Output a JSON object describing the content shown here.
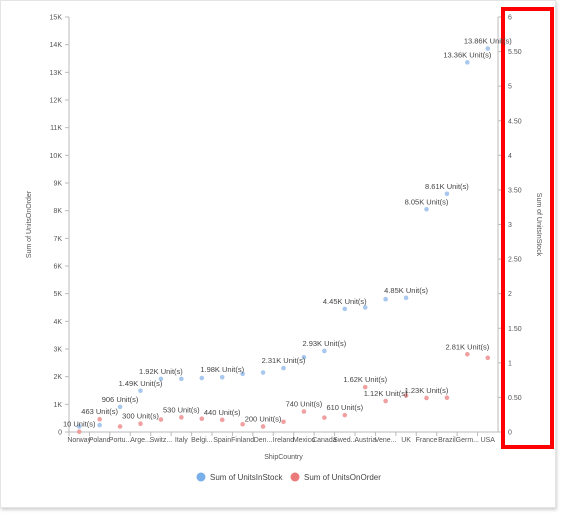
{
  "chart_data": {
    "type": "scatter",
    "xlabel": "ShipCountry",
    "ylabel_left": "Sum of UnitsOnOrder",
    "ylabel_right": "Sum of UnitsInStock",
    "categories": [
      "Norway",
      "Poland",
      "Portu...",
      "Arge...",
      "Switz...",
      "Italy",
      "Belgi...",
      "Spain",
      "Finland",
      "Den...",
      "Ireland",
      "Mexico",
      "Canada",
      "Swed...",
      "Austria",
      "Vene...",
      "UK",
      "France",
      "Brazil",
      "Germ...",
      "USA"
    ],
    "left_ticks": [
      "0",
      "1K",
      "2K",
      "3K",
      "4K",
      "5K",
      "6K",
      "7K",
      "8K",
      "9K",
      "10K",
      "11K",
      "12K",
      "13K",
      "14K",
      "15K"
    ],
    "right_ticks": [
      "0",
      "0.50",
      "1",
      "1.50",
      "2",
      "2.50",
      "3",
      "3.50",
      "4",
      "4.50",
      "5",
      "5.50",
      "6"
    ],
    "left_axis": {
      "min": 0,
      "max": 15000
    },
    "right_axis": {
      "min": 0,
      "max": 6
    },
    "grid": false,
    "highlighted_axis": "right",
    "highlight_color": "#ff0000",
    "legend_position": "bottom",
    "series": [
      {
        "name": "Sum of UnitsInStock",
        "color": "#a8c8ee",
        "legend_color": "#7ab0ea",
        "values": [
          200,
          250,
          906,
          1490,
          1920,
          1920,
          1950,
          1980,
          2100,
          2150,
          2310,
          2700,
          2930,
          4450,
          4500,
          4800,
          4850,
          8050,
          8610,
          13360,
          13860
        ],
        "labels": [
          null,
          null,
          "906 Unit(s)",
          "1.49K Unit(s)",
          "1.92K Unit(s)",
          null,
          null,
          "1.98K Unit(s)",
          null,
          null,
          "2.31K Unit(s)",
          null,
          "2.93K Unit(s)",
          "4.45K Unit(s)",
          null,
          null,
          "4.85K Unit(s)",
          "8.05K Unit(s)",
          "8.61K Unit(s)",
          "13.36K Unit(s)",
          "13.86K Unit(s)"
        ]
      },
      {
        "name": "Sum of UnitsOnOrder",
        "color": "#f0a0a0",
        "legend_color": "#ea7a7a",
        "values": [
          10,
          463,
          200,
          300,
          450,
          530,
          480,
          440,
          280,
          200,
          370,
          740,
          520,
          610,
          1620,
          1120,
          1320,
          1230,
          1240,
          2810,
          2680
        ],
        "labels": [
          "10 Unit(s)",
          "463 Unit(s)",
          null,
          "300 Unit(s)",
          null,
          "530 Unit(s)",
          null,
          "440 Unit(s)",
          null,
          "200 Unit(s)",
          null,
          "740 Unit(s)",
          null,
          "610 Unit(s)",
          "1.62K Unit(s)",
          "1.12K Unit(s)",
          null,
          "1.23K Unit(s)",
          null,
          "2.81K Unit(s)",
          null
        ]
      }
    ]
  }
}
